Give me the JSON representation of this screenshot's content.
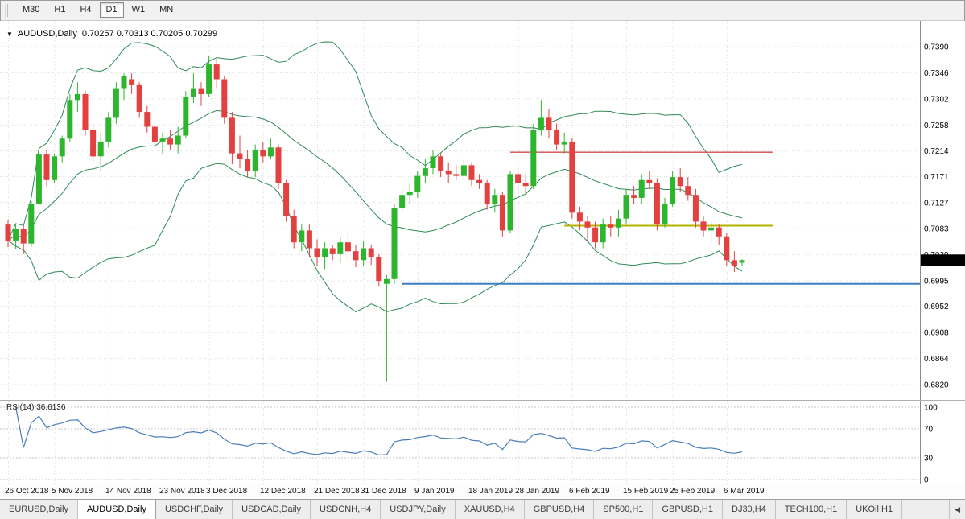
{
  "toolbar": {
    "timeframes": [
      {
        "label": "M30",
        "active": false
      },
      {
        "label": "H1",
        "active": false
      },
      {
        "label": "H4",
        "active": false
      },
      {
        "label": "D1",
        "active": true
      },
      {
        "label": "W1",
        "active": false
      },
      {
        "label": "MN",
        "active": false
      }
    ]
  },
  "chart": {
    "menu_icon": "▼",
    "symbol": "AUDUSD,Daily",
    "ohlc": "0.70257 0.70313 0.70205 0.70299",
    "current_price": "0.70299"
  },
  "rsi_panel": {
    "name": "RSI(14)",
    "value": "36.6136"
  },
  "chart_data": {
    "type": "candlestick",
    "title": "AUDUSD,Daily",
    "y_range": [
      0.682,
      0.739
    ],
    "y_axis_labels": [
      "0.7390",
      "0.7346",
      "0.7302",
      "0.7258",
      "0.7214",
      "0.7171",
      "0.7127",
      "0.7083",
      "0.7039",
      "0.6995",
      "0.6952",
      "0.6908",
      "0.6864",
      "0.6820"
    ],
    "x_labels": [
      {
        "text": "26 Oct 2018",
        "index": 0
      },
      {
        "text": "5 Nov 2018",
        "index": 6
      },
      {
        "text": "14 Nov 2018",
        "index": 13
      },
      {
        "text": "23 Nov 2018",
        "index": 20
      },
      {
        "text": "3 Dec 2018",
        "index": 26
      },
      {
        "text": "12 Dec 2018",
        "index": 33
      },
      {
        "text": "21 Dec 2018",
        "index": 40
      },
      {
        "text": "31 Dec 2018",
        "index": 46
      },
      {
        "text": "9 Jan 2019",
        "index": 53
      },
      {
        "text": "18 Jan 2019",
        "index": 60
      },
      {
        "text": "28 Jan 2019",
        "index": 66
      },
      {
        "text": "6 Feb 2019",
        "index": 73
      },
      {
        "text": "15 Feb 2019",
        "index": 80
      },
      {
        "text": "25 Feb 2019",
        "index": 86
      },
      {
        "text": "6 Mar 2019",
        "index": 93
      }
    ],
    "candles": [
      [
        0.709,
        0.7098,
        0.7052,
        0.7063
      ],
      [
        0.7063,
        0.709,
        0.7048,
        0.7082
      ],
      [
        0.7082,
        0.7088,
        0.704,
        0.7058
      ],
      [
        0.7058,
        0.713,
        0.7052,
        0.7125
      ],
      [
        0.7125,
        0.7215,
        0.712,
        0.7208
      ],
      [
        0.7208,
        0.7215,
        0.7155,
        0.7165
      ],
      [
        0.7165,
        0.721,
        0.716,
        0.7205
      ],
      [
        0.7205,
        0.724,
        0.7195,
        0.7235
      ],
      [
        0.7235,
        0.731,
        0.723,
        0.73
      ],
      [
        0.73,
        0.733,
        0.728,
        0.731
      ],
      [
        0.731,
        0.7315,
        0.724,
        0.725
      ],
      [
        0.725,
        0.726,
        0.7195,
        0.7205
      ],
      [
        0.7205,
        0.7245,
        0.718,
        0.723
      ],
      [
        0.723,
        0.728,
        0.722,
        0.727
      ],
      [
        0.727,
        0.733,
        0.726,
        0.732
      ],
      [
        0.732,
        0.7345,
        0.73,
        0.734
      ],
      [
        0.7335,
        0.7345,
        0.731,
        0.7325
      ],
      [
        0.7325,
        0.733,
        0.727,
        0.728
      ],
      [
        0.728,
        0.729,
        0.7245,
        0.7255
      ],
      [
        0.7255,
        0.7265,
        0.722,
        0.723
      ],
      [
        0.723,
        0.7245,
        0.721,
        0.7235
      ],
      [
        0.7235,
        0.725,
        0.7215,
        0.7225
      ],
      [
        0.7225,
        0.7255,
        0.721,
        0.724
      ],
      [
        0.724,
        0.7315,
        0.7235,
        0.7305
      ],
      [
        0.7305,
        0.7345,
        0.7295,
        0.732
      ],
      [
        0.732,
        0.733,
        0.729,
        0.731
      ],
      [
        0.731,
        0.7375,
        0.7305,
        0.736
      ],
      [
        0.736,
        0.737,
        0.732,
        0.7335
      ],
      [
        0.7335,
        0.734,
        0.726,
        0.727
      ],
      [
        0.727,
        0.728,
        0.7192,
        0.721
      ],
      [
        0.721,
        0.724,
        0.7185,
        0.72
      ],
      [
        0.72,
        0.7215,
        0.717,
        0.718
      ],
      [
        0.718,
        0.7225,
        0.717,
        0.7215
      ],
      [
        0.7215,
        0.723,
        0.7195,
        0.7205
      ],
      [
        0.7205,
        0.7235,
        0.72,
        0.722
      ],
      [
        0.722,
        0.7225,
        0.715,
        0.716
      ],
      [
        0.716,
        0.7165,
        0.7095,
        0.7105
      ],
      [
        0.7105,
        0.7115,
        0.705,
        0.706
      ],
      [
        0.706,
        0.709,
        0.7045,
        0.708
      ],
      [
        0.708,
        0.709,
        0.7035,
        0.705
      ],
      [
        0.705,
        0.7065,
        0.702,
        0.7035
      ],
      [
        0.7035,
        0.706,
        0.7015,
        0.705
      ],
      [
        0.705,
        0.7055,
        0.703,
        0.704
      ],
      [
        0.704,
        0.707,
        0.7025,
        0.706
      ],
      [
        0.706,
        0.7075,
        0.703,
        0.7045
      ],
      [
        0.7045,
        0.7055,
        0.7018,
        0.703
      ],
      [
        0.703,
        0.7062,
        0.702,
        0.705
      ],
      [
        0.705,
        0.7055,
        0.7022,
        0.7035
      ],
      [
        0.7035,
        0.704,
        0.6985,
        0.6995
      ],
      [
        0.699,
        0.7005,
        0.6825,
        0.6998
      ],
      [
        0.6998,
        0.7125,
        0.699,
        0.7118
      ],
      [
        0.7118,
        0.715,
        0.711,
        0.714
      ],
      [
        0.714,
        0.716,
        0.7125,
        0.7145
      ],
      [
        0.7145,
        0.718,
        0.7135,
        0.7172
      ],
      [
        0.7172,
        0.72,
        0.716,
        0.7185
      ],
      [
        0.7185,
        0.7215,
        0.7175,
        0.7205
      ],
      [
        0.7205,
        0.721,
        0.717,
        0.718
      ],
      [
        0.718,
        0.7195,
        0.716,
        0.7175
      ],
      [
        0.7175,
        0.719,
        0.7165,
        0.7172
      ],
      [
        0.7172,
        0.72,
        0.7165,
        0.719
      ],
      [
        0.719,
        0.7195,
        0.7155,
        0.7165
      ],
      [
        0.7165,
        0.7175,
        0.715,
        0.716
      ],
      [
        0.716,
        0.7165,
        0.7115,
        0.7125
      ],
      [
        0.7125,
        0.715,
        0.711,
        0.714
      ],
      [
        0.714,
        0.7145,
        0.707,
        0.708
      ],
      [
        0.708,
        0.718,
        0.7075,
        0.7175
      ],
      [
        0.7175,
        0.7185,
        0.7145,
        0.716
      ],
      [
        0.716,
        0.7175,
        0.714,
        0.7155
      ],
      [
        0.7155,
        0.726,
        0.715,
        0.725
      ],
      [
        0.725,
        0.73,
        0.724,
        0.727
      ],
      [
        0.727,
        0.7285,
        0.7235,
        0.725
      ],
      [
        0.725,
        0.726,
        0.7215,
        0.7225
      ],
      [
        0.7225,
        0.7245,
        0.721,
        0.723
      ],
      [
        0.723,
        0.7235,
        0.71,
        0.711
      ],
      [
        0.711,
        0.712,
        0.708,
        0.7095
      ],
      [
        0.7095,
        0.7105,
        0.706,
        0.7085
      ],
      [
        0.7085,
        0.7095,
        0.705,
        0.706
      ],
      [
        0.706,
        0.71,
        0.705,
        0.709
      ],
      [
        0.709,
        0.7105,
        0.707,
        0.7085
      ],
      [
        0.7085,
        0.7115,
        0.707,
        0.71
      ],
      [
        0.71,
        0.715,
        0.709,
        0.714
      ],
      [
        0.714,
        0.7155,
        0.7125,
        0.7135
      ],
      [
        0.7135,
        0.7175,
        0.7125,
        0.7165
      ],
      [
        0.7165,
        0.718,
        0.715,
        0.716
      ],
      [
        0.716,
        0.7168,
        0.708,
        0.709
      ],
      [
        0.709,
        0.7135,
        0.7085,
        0.7125
      ],
      [
        0.7125,
        0.718,
        0.712,
        0.717
      ],
      [
        0.717,
        0.7185,
        0.7145,
        0.7155
      ],
      [
        0.7155,
        0.717,
        0.713,
        0.714
      ],
      [
        0.714,
        0.715,
        0.7085,
        0.7095
      ],
      [
        0.7095,
        0.7105,
        0.707,
        0.708
      ],
      [
        0.708,
        0.7095,
        0.706,
        0.7085
      ],
      [
        0.7085,
        0.709,
        0.7055,
        0.707
      ],
      [
        0.707,
        0.7075,
        0.702,
        0.703
      ],
      [
        0.703,
        0.7045,
        0.701,
        0.702
      ],
      [
        0.70257,
        0.70313,
        0.70205,
        0.70299
      ]
    ],
    "colors": {
      "bull": "#2db52d",
      "bear": "#e34040",
      "bollinger": "#2e8b57",
      "rsi": "#4a7ebb",
      "grid": "#dedede"
    },
    "overlays": {
      "bollinger": {
        "period": 20,
        "deviation": 2
      },
      "hlines": [
        {
          "name": "resistance-line-red",
          "price": 0.7212,
          "color": "#d94c4c",
          "width": 1.4,
          "from_index": 65,
          "to_index": 99
        },
        {
          "name": "support-line-yellow",
          "price": 0.7088,
          "color": "#b3b300",
          "width": 2,
          "from_index": 72,
          "to_index": 99
        },
        {
          "name": "support-line-blue",
          "price": 0.699,
          "color": "#3f7fbf",
          "width": 2,
          "from_index": 51,
          "to_index": null
        }
      ]
    },
    "rsi": {
      "period": 14,
      "levels": [
        100,
        70,
        30,
        0
      ],
      "last_value": 36.6136
    }
  },
  "tabs": {
    "scroll_left_icon": "◀",
    "items": [
      {
        "label": "EURUSD,Daily",
        "active": false
      },
      {
        "label": "AUDUSD,Daily",
        "active": true
      },
      {
        "label": "USDCHF,Daily",
        "active": false
      },
      {
        "label": "USDCAD,Daily",
        "active": false
      },
      {
        "label": "USDCNH,H4",
        "active": false
      },
      {
        "label": "USDJPY,Daily",
        "active": false
      },
      {
        "label": "XAUUSD,H4",
        "active": false
      },
      {
        "label": "GBPUSD,H4",
        "active": false
      },
      {
        "label": "SP500,H1",
        "active": false
      },
      {
        "label": "GBPUSD,H1",
        "active": false
      },
      {
        "label": "DJ30,H4",
        "active": false
      },
      {
        "label": "TECH100,H1",
        "active": false
      },
      {
        "label": "UKOil,H1",
        "active": false
      }
    ]
  }
}
